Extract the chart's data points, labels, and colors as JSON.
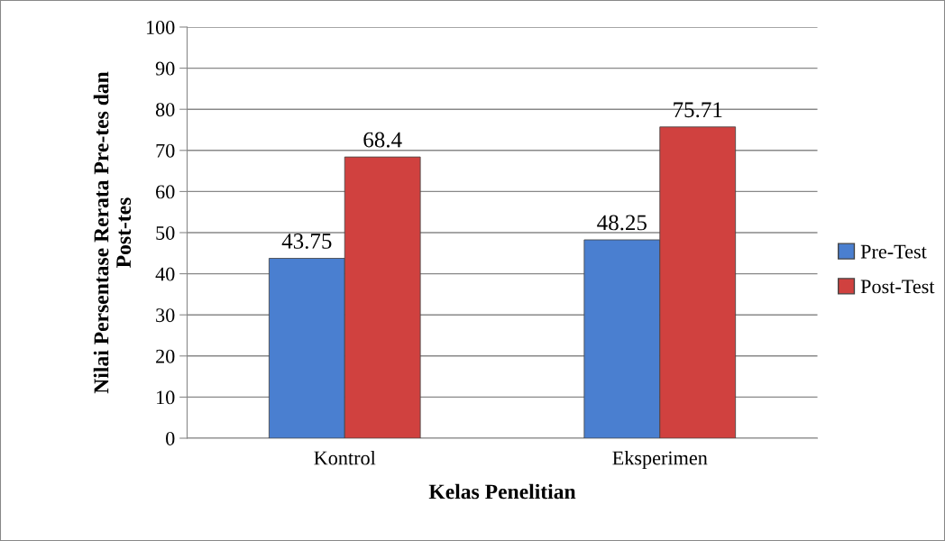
{
  "chart_data": {
    "type": "bar",
    "xlabel": "Kelas Penelitian",
    "ylabel": "Nilai Persentase Rerata Pre-tes dan\nPost-tes",
    "categories": [
      "Kontrol",
      "Eksperimen"
    ],
    "series": [
      {
        "name": "Pre-Test",
        "color": "#4a7fd0",
        "values": [
          43.75,
          48.25
        ]
      },
      {
        "name": "Post-Test",
        "color": "#d0413f",
        "values": [
          68.4,
          75.71
        ]
      }
    ],
    "ylim": [
      0,
      100
    ],
    "yticks": [
      0,
      10,
      20,
      30,
      40,
      50,
      60,
      70,
      80,
      90,
      100
    ],
    "grid": "y",
    "legend": "right",
    "data_labels": true
  }
}
